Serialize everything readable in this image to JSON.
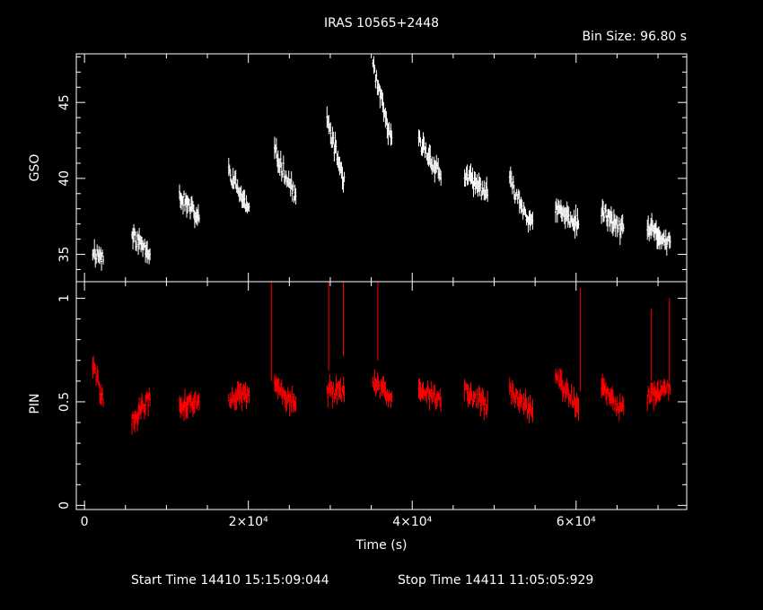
{
  "header": {
    "title": "IRAS 10565+2448",
    "bin_size": "Bin Size: 96.80 s"
  },
  "footer": {
    "start_time": "Start Time 14410 15:15:09:044",
    "stop_time": "Stop Time 14411 11:05:05:929"
  },
  "colors": {
    "background": "#000000",
    "axes": "#ffffff",
    "gso": "#ffffff",
    "pin": "#ff0000"
  },
  "chart_data": [
    {
      "type": "scatter",
      "style": "error-bar light curve",
      "ylabel": "GSO",
      "xlim": [
        -1000,
        73500
      ],
      "ylim": [
        33.2,
        48.2
      ],
      "ymajor_ticks": [
        35,
        40,
        45
      ],
      "ymajor_labels": [
        "35",
        "40",
        "45"
      ],
      "color": "#ffffff",
      "segments": [
        {
          "x": [
            1000,
            2300
          ],
          "y": [
            35.2,
            34.8
          ]
        },
        {
          "x": [
            5800,
            8000
          ],
          "y": [
            36.2,
            35.2
          ]
        },
        {
          "x": [
            11600,
            14000
          ],
          "y": [
            38.9,
            37.3
          ]
        },
        {
          "x": [
            17600,
            20100
          ],
          "y": [
            40.5,
            37.8
          ]
        },
        {
          "x": [
            23200,
            25800
          ],
          "y": [
            41.8,
            38.8
          ]
        },
        {
          "x": [
            29600,
            31700
          ],
          "y": [
            43.8,
            39.8
          ]
        },
        {
          "x": [
            35200,
            37500
          ],
          "y": [
            47.3,
            42.3
          ]
        },
        {
          "x": [
            40800,
            43500
          ],
          "y": [
            42.5,
            40.2
          ]
        },
        {
          "x": [
            46400,
            49200
          ],
          "y": [
            40.2,
            39.0
          ]
        },
        {
          "x": [
            51900,
            54700
          ],
          "y": [
            39.8,
            36.8
          ]
        },
        {
          "x": [
            57500,
            60300
          ],
          "y": [
            38.0,
            37.0
          ]
        },
        {
          "x": [
            63100,
            65800
          ],
          "y": [
            37.8,
            36.5
          ]
        },
        {
          "x": [
            68700,
            71500
          ],
          "y": [
            36.8,
            35.6
          ]
        }
      ]
    },
    {
      "type": "scatter",
      "style": "error-bar light curve",
      "xlabel": "Time (s)",
      "ylabel": "PIN",
      "xlim": [
        -1000,
        73500
      ],
      "ylim": [
        -0.02,
        1.08
      ],
      "ymajor_ticks": [
        0,
        0.5,
        1
      ],
      "ymajor_labels": [
        "0",
        "0.5",
        "1"
      ],
      "xmajor_ticks": [
        0,
        20000,
        40000,
        60000
      ],
      "xmajor_labels": [
        "0",
        "2×10⁴",
        "4×10⁴",
        "6×10⁴"
      ],
      "color": "#ff0000",
      "segments": [
        {
          "x": [
            1000,
            2300
          ],
          "y": [
            0.68,
            0.5
          ]
        },
        {
          "x": [
            5800,
            8000
          ],
          "y": [
            0.4,
            0.52
          ]
        },
        {
          "x": [
            11600,
            14000
          ],
          "y": [
            0.48,
            0.5
          ]
        },
        {
          "x": [
            17600,
            20100
          ],
          "y": [
            0.52,
            0.53
          ]
        },
        {
          "x": [
            23200,
            25800
          ],
          "y": [
            0.58,
            0.49
          ]
        },
        {
          "x": [
            29600,
            31700
          ],
          "y": [
            0.55,
            0.55
          ]
        },
        {
          "x": [
            35200,
            37500
          ],
          "y": [
            0.58,
            0.53
          ]
        },
        {
          "x": [
            40800,
            43500
          ],
          "y": [
            0.58,
            0.5
          ]
        },
        {
          "x": [
            46400,
            49200
          ],
          "y": [
            0.55,
            0.48
          ]
        },
        {
          "x": [
            51900,
            54700
          ],
          "y": [
            0.55,
            0.45
          ]
        },
        {
          "x": [
            57500,
            60300
          ],
          "y": [
            0.62,
            0.48
          ]
        },
        {
          "x": [
            63100,
            65800
          ],
          "y": [
            0.56,
            0.46
          ]
        },
        {
          "x": [
            68700,
            71500
          ],
          "y": [
            0.52,
            0.58
          ]
        }
      ],
      "spikes": [
        {
          "x": 22800,
          "ylo": 0.6,
          "yhi": 1.08
        },
        {
          "x": 29800,
          "ylo": 0.65,
          "yhi": 1.08
        },
        {
          "x": 31600,
          "ylo": 0.72,
          "yhi": 1.08
        },
        {
          "x": 35800,
          "ylo": 0.7,
          "yhi": 1.08
        },
        {
          "x": 60500,
          "ylo": 0.55,
          "yhi": 1.05
        },
        {
          "x": 69200,
          "ylo": 0.6,
          "yhi": 0.95
        },
        {
          "x": 71400,
          "ylo": 0.6,
          "yhi": 1.0
        }
      ]
    }
  ]
}
